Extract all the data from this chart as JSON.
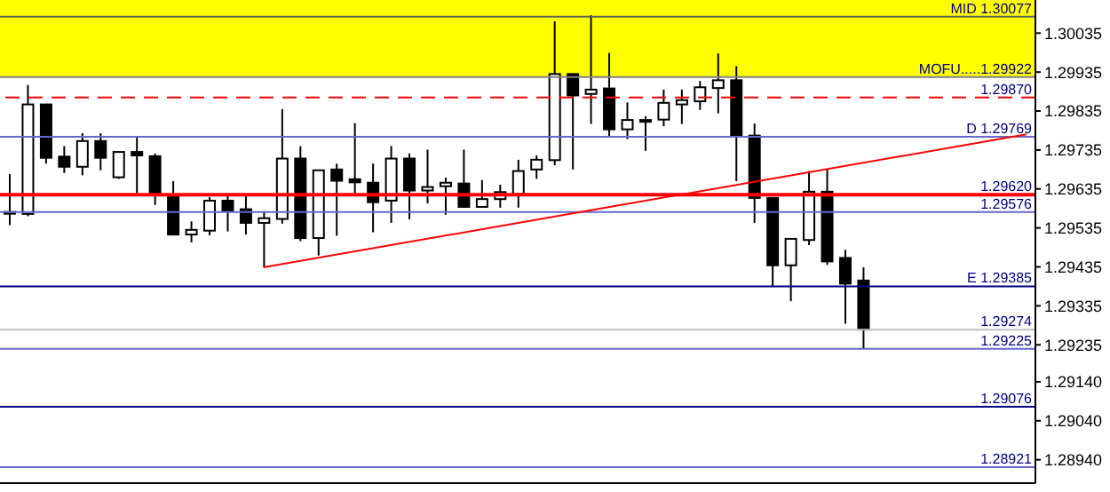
{
  "chart_data": {
    "type": "candlestick",
    "categories": [
      null,
      null,
      null,
      null,
      null,
      null,
      null,
      null,
      null,
      null,
      null,
      null,
      null,
      null,
      null,
      null,
      null,
      null,
      null,
      null,
      null,
      null,
      null,
      null,
      null,
      null,
      null,
      null,
      null,
      null,
      null,
      null,
      null,
      null,
      null,
      null,
      null,
      null,
      null,
      null,
      null,
      null,
      null,
      null,
      null,
      null,
      null,
      null,
      null,
      null,
      null,
      null,
      null,
      null,
      null,
      null,
      null
    ],
    "ohlc": [
      [
        1.29576,
        1.29673,
        1.29542,
        1.29576
      ],
      [
        1.29571,
        1.29902,
        1.29565,
        1.29852
      ],
      [
        1.29852,
        1.29852,
        1.297,
        1.29715
      ],
      [
        1.29718,
        1.29745,
        1.29676,
        1.29692
      ],
      [
        1.29692,
        1.29778,
        1.2967,
        1.29758
      ],
      [
        1.29758,
        1.29778,
        1.29683,
        1.29715
      ],
      [
        1.29665,
        1.2973,
        1.29661,
        1.2973
      ],
      [
        1.2973,
        1.29767,
        1.29624,
        1.29721
      ],
      [
        1.29719,
        1.29726,
        1.29594,
        1.29619
      ],
      [
        1.29619,
        1.29655,
        1.29518,
        1.29518
      ],
      [
        1.29518,
        1.29552,
        1.29498,
        1.2953
      ],
      [
        1.29528,
        1.29614,
        1.29516,
        1.29605
      ],
      [
        1.29605,
        1.29619,
        1.29526,
        1.29578
      ],
      [
        1.29583,
        1.29619,
        1.29518,
        1.29548
      ],
      [
        1.29548,
        1.29578,
        1.29434,
        1.2956
      ],
      [
        1.29558,
        1.2984,
        1.29546,
        1.29713
      ],
      [
        1.29713,
        1.29745,
        1.29501,
        1.29509
      ],
      [
        1.29509,
        1.29683,
        1.29464,
        1.29683
      ],
      [
        1.29685,
        1.297,
        1.29515,
        1.29656
      ],
      [
        1.2966,
        1.29804,
        1.29624,
        1.29652
      ],
      [
        1.29651,
        1.297,
        1.29524,
        1.29601
      ],
      [
        1.29605,
        1.29745,
        1.29548,
        1.29713
      ],
      [
        1.29713,
        1.29726,
        1.29557,
        1.29631
      ],
      [
        1.29631,
        1.29736,
        1.29598,
        1.2964
      ],
      [
        1.29642,
        1.29664,
        1.29569,
        1.29651
      ],
      [
        1.29649,
        1.29736,
        1.29589,
        1.29589
      ],
      [
        1.29589,
        1.29658,
        1.29589,
        1.29609
      ],
      [
        1.29609,
        1.29646,
        1.29587,
        1.29627
      ],
      [
        1.29622,
        1.2971,
        1.29587,
        1.29681
      ],
      [
        1.29685,
        1.29721,
        1.29661,
        1.2971
      ],
      [
        1.29709,
        1.30065,
        1.29696,
        1.2993
      ],
      [
        1.2993,
        1.2993,
        1.29685,
        1.29875
      ],
      [
        1.29879,
        1.30081,
        1.29802,
        1.2989
      ],
      [
        1.29893,
        1.29984,
        1.29769,
        1.29788
      ],
      [
        1.29788,
        1.29857,
        1.29763,
        1.29812
      ],
      [
        1.29812,
        1.29822,
        1.29733,
        1.29812
      ],
      [
        1.29813,
        1.2989,
        1.29796,
        1.29856
      ],
      [
        1.29852,
        1.2989,
        1.29802,
        1.29863
      ],
      [
        1.2986,
        1.29912,
        1.29838,
        1.29896
      ],
      [
        1.29894,
        1.29983,
        1.29829,
        1.29914
      ],
      [
        1.29914,
        1.2995,
        1.29655,
        1.29772
      ],
      [
        1.29772,
        1.29803,
        1.29548,
        1.29612
      ],
      [
        1.29612,
        1.29612,
        1.29385,
        1.29439
      ],
      [
        1.29439,
        1.29507,
        1.29347,
        1.29507
      ],
      [
        1.29504,
        1.29681,
        1.29491,
        1.29628
      ],
      [
        1.29628,
        1.29685,
        1.2944,
        1.29449
      ],
      [
        1.29458,
        1.29479,
        1.29289,
        1.29392
      ],
      [
        1.294,
        1.29434,
        1.29225,
        1.29274
      ],
      null,
      null,
      null,
      null,
      null,
      null,
      null,
      null,
      null
    ],
    "series": [
      {
        "type": "line",
        "color": "#ff0000",
        "values": [
          null,
          null,
          null,
          null,
          null,
          null,
          null,
          null,
          null,
          null,
          null,
          null,
          null,
          null,
          1.29434,
          null,
          null,
          null,
          null,
          null,
          null,
          null,
          null,
          null,
          null,
          null,
          null,
          null,
          null,
          null,
          null,
          null,
          null,
          null,
          null,
          null,
          null,
          null,
          null,
          null,
          null,
          null,
          null,
          null,
          null,
          null,
          null,
          null,
          null,
          null,
          null,
          null,
          null,
          null,
          null,
          null,
          1.29775
        ]
      }
    ],
    "ylim": [
      1.2888,
      1.3012
    ],
    "yticks": [
      1.30035,
      1.29935,
      1.29835,
      1.29735,
      1.29635,
      1.29535,
      1.29435,
      1.29335,
      1.29235,
      {
        "value": 1.2914,
        "label": "1.29140"
      },
      {
        "value": 1.2904,
        "label": "1.29040"
      },
      {
        "value": 1.2894,
        "label": "1.28940"
      }
    ],
    "tick_labels": "y",
    "bands": [
      {
        "axis": "y",
        "from": 1.29922,
        "to": 1.3012,
        "color": "#ffff00"
      }
    ],
    "ref_lines": [
      {
        "axis": "y",
        "value": 1.30077,
        "label": "MID 1.30077",
        "color": "#606060"
      },
      {
        "axis": "y",
        "value": 1.29922,
        "label": "MOFU.....1.29922",
        "color": "#808080"
      },
      {
        "axis": "y",
        "value": 1.2987,
        "label": "1.29870",
        "color": "#ff0000",
        "line_style": "dashed"
      },
      {
        "axis": "y",
        "value": 1.29769,
        "label": "D 1.29769",
        "color": "#6666cc"
      },
      {
        "axis": "y",
        "value": 1.2962,
        "label": "1.29620",
        "color": "#ff0000"
      },
      {
        "axis": "y",
        "value": 1.29576,
        "label": "1.29576",
        "color": "#6666cc"
      },
      {
        "axis": "y",
        "value": 1.29385,
        "label": "E 1.29385",
        "color": "#000080"
      },
      {
        "axis": "y",
        "value": 1.29274,
        "label": "1.29274",
        "color": "#c0c0c0"
      },
      {
        "axis": "y",
        "value": 1.29225,
        "label": "1.29225",
        "color": "#6666cc"
      },
      {
        "axis": "y",
        "value": 1.29076,
        "label": "1.29076",
        "color": "#000080"
      },
      {
        "axis": "y",
        "value": 1.28921,
        "label": "1.28921",
        "color": "#6666cc"
      }
    ]
  }
}
